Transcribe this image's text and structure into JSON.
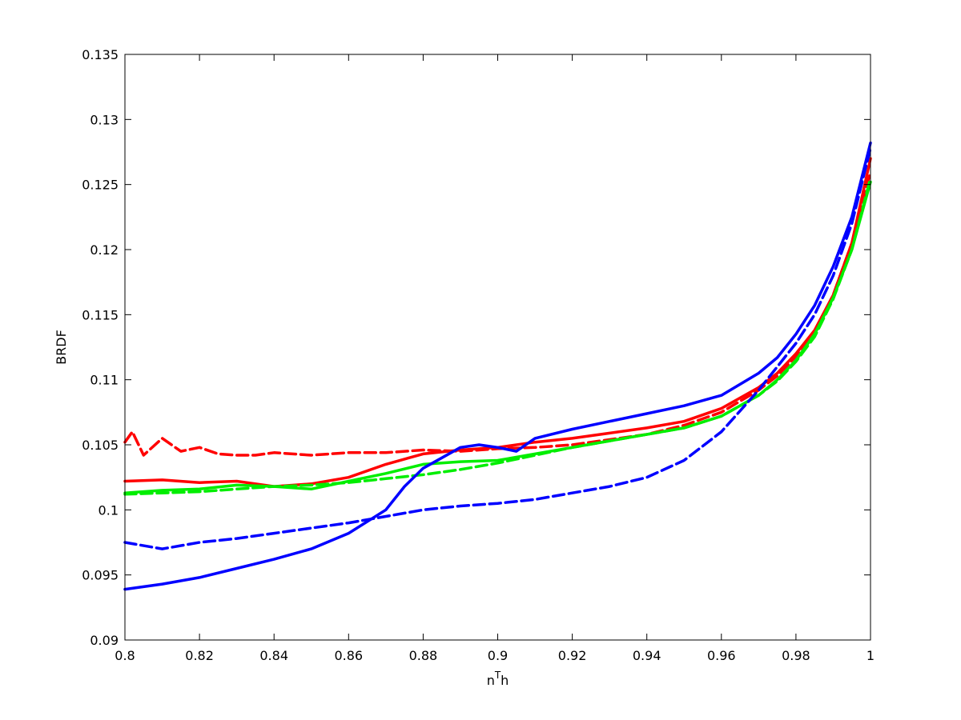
{
  "chart_data": {
    "type": "line",
    "title": "",
    "xlabel": "n",
    "xlabel_superscript": "T",
    "xlabel_suffix": "h",
    "ylabel": "BRDF",
    "xlim": [
      0.8,
      1.0
    ],
    "ylim": [
      0.09,
      0.135
    ],
    "xticks": [
      0.8,
      0.82,
      0.84,
      0.86,
      0.88,
      0.9,
      0.92,
      0.94,
      0.96,
      0.98,
      1.0
    ],
    "xtick_labels": [
      "0.8",
      "0.82",
      "0.84",
      "0.86",
      "0.88",
      "0.9",
      "0.92",
      "0.94",
      "0.96",
      "0.98",
      "1"
    ],
    "yticks": [
      0.09,
      0.095,
      0.1,
      0.105,
      0.11,
      0.115,
      0.12,
      0.125,
      0.13,
      0.135
    ],
    "ytick_labels": [
      "0.09",
      "0.095",
      "0.1",
      "0.105",
      "0.11",
      "0.115",
      "0.12",
      "0.125",
      "0.13",
      "0.135"
    ],
    "grid": false,
    "legend": "none",
    "series": [
      {
        "color": "#ff0000",
        "dash": "dashed",
        "x": [
          0.8,
          0.802,
          0.805,
          0.81,
          0.815,
          0.82,
          0.825,
          0.83,
          0.835,
          0.84,
          0.85,
          0.86,
          0.87,
          0.88,
          0.89,
          0.9,
          0.91,
          0.92,
          0.93,
          0.94,
          0.95,
          0.96,
          0.97,
          0.975,
          0.98,
          0.985,
          0.99,
          0.995,
          1.0
        ],
        "y": [
          0.1052,
          0.106,
          0.1042,
          0.1055,
          0.1045,
          0.1048,
          0.1043,
          0.1042,
          0.1042,
          0.1044,
          0.1042,
          0.1044,
          0.1044,
          0.1046,
          0.1045,
          0.1047,
          0.1048,
          0.105,
          0.1054,
          0.1058,
          0.1065,
          0.1075,
          0.1092,
          0.1103,
          0.1118,
          0.1137,
          0.1165,
          0.1205,
          0.126
        ]
      },
      {
        "color": "#ff0000",
        "dash": "solid",
        "x": [
          0.8,
          0.81,
          0.82,
          0.83,
          0.84,
          0.85,
          0.86,
          0.87,
          0.88,
          0.89,
          0.9,
          0.91,
          0.92,
          0.93,
          0.94,
          0.95,
          0.96,
          0.97,
          0.975,
          0.98,
          0.985,
          0.99,
          0.995,
          1.0
        ],
        "y": [
          0.1022,
          0.1023,
          0.1021,
          0.1022,
          0.1018,
          0.102,
          0.1025,
          0.1035,
          0.1043,
          0.1046,
          0.1048,
          0.1052,
          0.1055,
          0.1059,
          0.1063,
          0.1068,
          0.1078,
          0.1094,
          0.1105,
          0.112,
          0.1138,
          0.1165,
          0.1205,
          0.127
        ]
      },
      {
        "color": "#00ee00",
        "dash": "dashed",
        "x": [
          0.8,
          0.81,
          0.82,
          0.83,
          0.84,
          0.85,
          0.86,
          0.87,
          0.88,
          0.89,
          0.9,
          0.91,
          0.92,
          0.93,
          0.94,
          0.95,
          0.96,
          0.97,
          0.975,
          0.98,
          0.985,
          0.99,
          0.995,
          1.0
        ],
        "y": [
          0.1012,
          0.1013,
          0.1014,
          0.1016,
          0.1018,
          0.1019,
          0.1021,
          0.1024,
          0.1027,
          0.1031,
          0.1036,
          0.1042,
          0.1048,
          0.1053,
          0.1058,
          0.1063,
          0.1072,
          0.1088,
          0.1099,
          0.1114,
          0.1133,
          0.1162,
          0.12,
          0.1255
        ]
      },
      {
        "color": "#00ee00",
        "dash": "solid",
        "x": [
          0.8,
          0.81,
          0.82,
          0.83,
          0.84,
          0.85,
          0.86,
          0.87,
          0.88,
          0.89,
          0.9,
          0.91,
          0.92,
          0.93,
          0.94,
          0.95,
          0.96,
          0.97,
          0.975,
          0.98,
          0.985,
          0.99,
          0.995,
          1.0
        ],
        "y": [
          0.1013,
          0.1015,
          0.1016,
          0.1019,
          0.1018,
          0.1016,
          0.1022,
          0.1028,
          0.1035,
          0.1037,
          0.1038,
          0.1043,
          0.1048,
          0.1053,
          0.1058,
          0.1063,
          0.1072,
          0.1088,
          0.11,
          0.1115,
          0.1135,
          0.1163,
          0.12,
          0.1252
        ]
      },
      {
        "color": "#0000ff",
        "dash": "dashed",
        "x": [
          0.8,
          0.81,
          0.82,
          0.83,
          0.84,
          0.85,
          0.86,
          0.87,
          0.88,
          0.89,
          0.9,
          0.91,
          0.92,
          0.93,
          0.94,
          0.95,
          0.96,
          0.97,
          0.975,
          0.98,
          0.985,
          0.99,
          0.995,
          1.0
        ],
        "y": [
          0.0975,
          0.097,
          0.0975,
          0.0978,
          0.0982,
          0.0986,
          0.099,
          0.0995,
          0.1,
          0.1003,
          0.1005,
          0.1008,
          0.1013,
          0.1018,
          0.1025,
          0.1038,
          0.106,
          0.1092,
          0.111,
          0.1128,
          0.115,
          0.118,
          0.122,
          0.1278
        ]
      },
      {
        "color": "#0000ff",
        "dash": "solid",
        "x": [
          0.8,
          0.81,
          0.82,
          0.83,
          0.84,
          0.85,
          0.86,
          0.87,
          0.875,
          0.88,
          0.885,
          0.89,
          0.895,
          0.9,
          0.905,
          0.91,
          0.92,
          0.93,
          0.94,
          0.95,
          0.96,
          0.97,
          0.975,
          0.98,
          0.985,
          0.99,
          0.995,
          1.0
        ],
        "y": [
          0.0939,
          0.0943,
          0.0948,
          0.0955,
          0.0962,
          0.097,
          0.0982,
          0.1,
          0.1018,
          0.1032,
          0.104,
          0.1048,
          0.105,
          0.1048,
          0.1045,
          0.1055,
          0.1062,
          0.1068,
          0.1074,
          0.108,
          0.1088,
          0.1105,
          0.1117,
          0.1135,
          0.1157,
          0.1187,
          0.1225,
          0.1282
        ]
      }
    ]
  }
}
